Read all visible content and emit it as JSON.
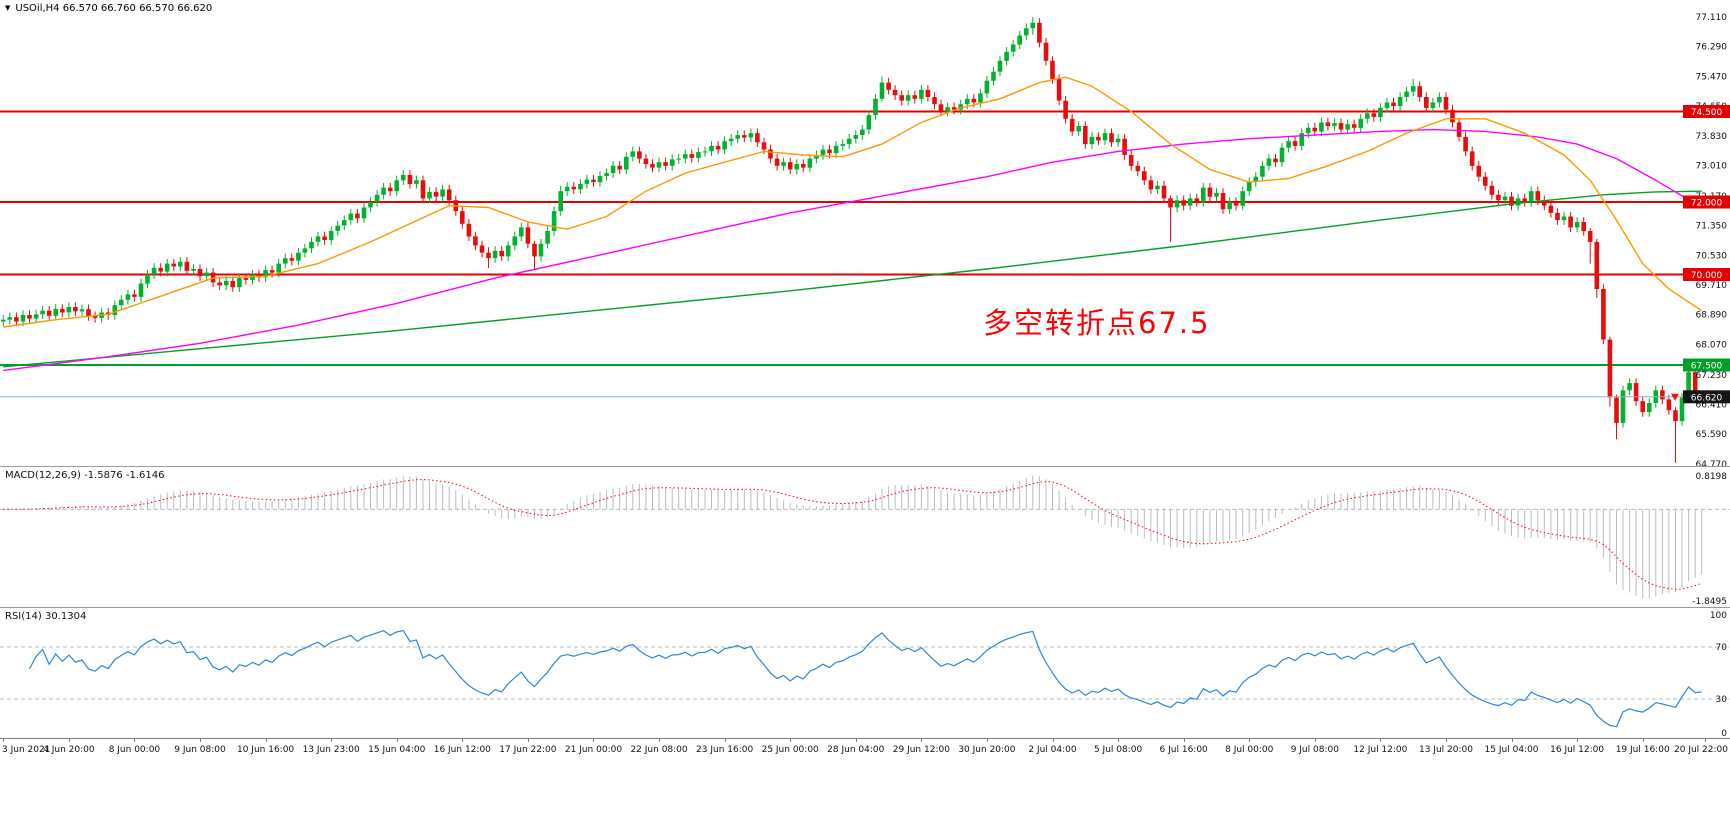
{
  "header": {
    "dropdown_icon": "▼",
    "symbol_line": "USOil,H4  66.570 66.760 66.570 66.620"
  },
  "annotation": {
    "text": "多空转折点67.5",
    "color": "#ff0000"
  },
  "macd_panel": {
    "label": "MACD(12,26,9) -1.5876 -1.6146",
    "axis_max": "0.8198",
    "axis_min": "-1.8495"
  },
  "rsi_panel": {
    "label": "RSI(14) 30.1304",
    "axis_labels": [
      "100",
      "70",
      "30",
      "0"
    ]
  },
  "price_scale": {
    "ticks": [
      "77.110",
      "76.290",
      "75.470",
      "74.650",
      "73.830",
      "73.010",
      "72.170",
      "71.350",
      "70.530",
      "69.710",
      "68.890",
      "68.070",
      "67.230",
      "66.410",
      "65.590",
      "64.770"
    ]
  },
  "time_axis": {
    "bars_per_label": 10,
    "labels": [
      "3 Jun 2021",
      "4 Jun 20:00",
      "8 Jun 00:00",
      "9 Jun 08:00",
      "10 Jun 16:00",
      "13 Jun 23:00",
      "15 Jun 04:00",
      "16 Jun 12:00",
      "17 Jun 22:00",
      "21 Jun 00:00",
      "22 Jun 08:00",
      "23 Jun 16:00",
      "25 Jun 00:00",
      "28 Jun 04:00",
      "29 Jun 12:00",
      "30 Jun 20:00",
      "2 Jul 04:00",
      "5 Jul 08:00",
      "6 Jul 16:00",
      "8 Jul 00:00",
      "9 Jul 08:00",
      "12 Jul 12:00",
      "13 Jul 20:00",
      "15 Jul 04:00",
      "16 Jul 12:00",
      "19 Jul 16:00",
      "20 Jul 22:00"
    ]
  },
  "hlines": [
    {
      "price": 74.5,
      "label": "74.500",
      "color": "#e60000"
    },
    {
      "price": 72.0,
      "label": "72.000",
      "color": "#e60000"
    },
    {
      "price": 70.0,
      "label": "70.000",
      "color": "#e60000"
    },
    {
      "price": 67.5,
      "label": "67.500",
      "color": "#00a028"
    }
  ],
  "current_price": {
    "price": 66.62,
    "value": "66.620",
    "line_color": "#8fb2cc",
    "box_color": "#151515",
    "arrow_color": "#ee1111"
  },
  "colors": {
    "bull": "#00b22d",
    "bear": "#e80c0c",
    "ma_fast": "#ff9900",
    "ma_mid": "#ff00ff",
    "ma_slow": "#00a028",
    "macd_hist": "#b8bcc0",
    "macd_signal": "#ff0000",
    "macd_zero": "#b9b9b9",
    "rsi": "#2c87d8",
    "level_dash": "#b0bcd0",
    "text": "#111111"
  },
  "chart_data": [
    {
      "type": "candlestick",
      "title": "USOil H4",
      "ylim": [
        64.71,
        77.58
      ],
      "default_wick": 0.13,
      "closes": [
        68.75,
        68.82,
        68.7,
        68.88,
        68.78,
        68.9,
        69.0,
        68.86,
        69.05,
        68.95,
        69.1,
        68.98,
        69.04,
        68.85,
        68.8,
        68.95,
        68.88,
        69.15,
        69.3,
        69.45,
        69.38,
        69.75,
        70.0,
        70.18,
        70.08,
        70.3,
        70.22,
        70.35,
        70.1,
        70.15,
        69.95,
        70.05,
        69.78,
        69.7,
        69.82,
        69.65,
        69.9,
        69.85,
        70.0,
        69.92,
        70.12,
        70.05,
        70.3,
        70.45,
        70.38,
        70.6,
        70.72,
        70.9,
        71.05,
        70.95,
        71.2,
        71.35,
        71.5,
        71.68,
        71.55,
        71.85,
        72.0,
        72.2,
        72.4,
        72.3,
        72.6,
        72.75,
        72.5,
        72.6,
        72.1,
        72.28,
        72.15,
        72.35,
        72.05,
        71.75,
        71.4,
        71.05,
        70.8,
        70.6,
        70.45,
        70.65,
        70.5,
        70.8,
        71.05,
        71.3,
        70.85,
        70.5,
        70.85,
        71.2,
        71.75,
        72.3,
        72.42,
        72.35,
        72.5,
        72.62,
        72.55,
        72.72,
        72.8,
        73.0,
        72.9,
        73.25,
        73.4,
        73.2,
        73.05,
        72.95,
        73.1,
        73.0,
        73.18,
        73.2,
        73.32,
        73.22,
        73.38,
        73.4,
        73.55,
        73.45,
        73.68,
        73.75,
        73.85,
        73.78,
        73.9,
        73.65,
        73.45,
        73.2,
        73.0,
        73.1,
        72.9,
        73.05,
        72.95,
        73.2,
        73.3,
        73.45,
        73.35,
        73.55,
        73.6,
        73.75,
        73.85,
        74.0,
        74.4,
        74.85,
        75.3,
        75.1,
        74.95,
        74.8,
        74.95,
        74.85,
        75.1,
        74.9,
        74.7,
        74.5,
        74.62,
        74.55,
        74.7,
        74.85,
        74.75,
        75.0,
        75.35,
        75.6,
        75.9,
        76.15,
        76.35,
        76.6,
        76.8,
        76.95,
        76.4,
        75.9,
        75.4,
        74.8,
        74.3,
        73.95,
        74.1,
        73.6,
        73.8,
        73.7,
        73.9,
        73.65,
        73.75,
        73.3,
        73.0,
        72.85,
        72.6,
        72.35,
        72.45,
        72.1,
        71.85,
        72.05,
        71.9,
        72.1,
        72.0,
        72.4,
        72.15,
        72.25,
        71.8,
        72.0,
        71.9,
        72.3,
        72.55,
        72.7,
        73.0,
        73.2,
        73.1,
        73.5,
        73.68,
        73.55,
        73.9,
        74.05,
        73.95,
        74.2,
        74.1,
        74.18,
        74.0,
        74.15,
        74.05,
        74.3,
        74.45,
        74.35,
        74.6,
        74.75,
        74.65,
        74.9,
        75.05,
        75.2,
        74.9,
        74.6,
        74.75,
        74.9,
        74.55,
        74.2,
        73.8,
        73.4,
        73.0,
        72.7,
        72.45,
        72.2,
        72.05,
        72.15,
        71.9,
        72.1,
        72.0,
        72.3,
        72.05,
        71.9,
        71.7,
        71.5,
        71.6,
        71.3,
        71.45,
        71.2,
        70.9,
        69.6,
        68.2,
        66.6,
        65.9,
        66.8,
        67.0,
        66.5,
        66.2,
        66.45,
        66.8,
        66.55,
        66.25,
        65.95,
        66.6,
        67.3,
        66.57,
        66.62
      ],
      "wick_overrides": {
        "74": [
          70.75,
          70.18
        ],
        "81": [
          70.92,
          70.15
        ],
        "85": [
          72.45,
          71.62
        ],
        "134": [
          75.47,
          74.78
        ],
        "157": [
          77.11,
          76.62
        ],
        "178": [
          72.18,
          70.9
        ],
        "215": [
          75.4,
          74.92
        ],
        "242": [
          71.28,
          70.3
        ],
        "243": [
          70.98,
          69.35
        ],
        "245": [
          68.28,
          66.35
        ],
        "246": [
          66.68,
          65.45
        ],
        "255": [
          66.33,
          64.8
        ],
        "257": [
          67.52,
          66.5
        ],
        "258": [
          67.38,
          66.45
        ],
        "259": [
          66.76,
          66.57
        ]
      },
      "overlays": [
        {
          "name": "ma-slow-line",
          "color": "#00a028",
          "points": [
            [
              0,
              67.45
            ],
            [
              30,
              67.95
            ],
            [
              60,
              68.45
            ],
            [
              90,
              69.0
            ],
            [
              120,
              69.55
            ],
            [
              150,
              70.15
            ],
            [
              180,
              70.8
            ],
            [
              210,
              71.5
            ],
            [
              230,
              71.95
            ],
            [
              244,
              72.2
            ],
            [
              252,
              72.28
            ],
            [
              259,
              72.3
            ]
          ]
        },
        {
          "name": "ma-mid-line",
          "color": "#ff00ff",
          "points": [
            [
              0,
              67.35
            ],
            [
              15,
              67.7
            ],
            [
              30,
              68.1
            ],
            [
              45,
              68.6
            ],
            [
              60,
              69.2
            ],
            [
              75,
              69.9
            ],
            [
              90,
              70.5
            ],
            [
              105,
              71.1
            ],
            [
              120,
              71.7
            ],
            [
              135,
              72.2
            ],
            [
              150,
              72.7
            ],
            [
              160,
              73.1
            ],
            [
              170,
              73.4
            ],
            [
              180,
              73.6
            ],
            [
              190,
              73.75
            ],
            [
              200,
              73.85
            ],
            [
              210,
              73.95
            ],
            [
              218,
              74.0
            ],
            [
              226,
              73.95
            ],
            [
              234,
              73.8
            ],
            [
              240,
              73.6
            ],
            [
              246,
              73.2
            ],
            [
              252,
              72.6
            ],
            [
              259,
              71.85
            ]
          ]
        },
        {
          "name": "ma-fast-line",
          "color": "#ff9900",
          "points": [
            [
              0,
              68.55
            ],
            [
              8,
              68.75
            ],
            [
              16,
              68.9
            ],
            [
              24,
              69.4
            ],
            [
              32,
              69.9
            ],
            [
              40,
              69.95
            ],
            [
              48,
              70.3
            ],
            [
              56,
              70.9
            ],
            [
              62,
              71.4
            ],
            [
              68,
              71.9
            ],
            [
              74,
              71.85
            ],
            [
              80,
              71.45
            ],
            [
              86,
              71.25
            ],
            [
              92,
              71.6
            ],
            [
              98,
              72.3
            ],
            [
              104,
              72.8
            ],
            [
              110,
              73.1
            ],
            [
              116,
              73.4
            ],
            [
              122,
              73.3
            ],
            [
              128,
              73.25
            ],
            [
              134,
              73.6
            ],
            [
              140,
              74.2
            ],
            [
              146,
              74.6
            ],
            [
              152,
              74.85
            ],
            [
              158,
              75.3
            ],
            [
              162,
              75.45
            ],
            [
              166,
              75.2
            ],
            [
              172,
              74.5
            ],
            [
              178,
              73.6
            ],
            [
              184,
              72.9
            ],
            [
              190,
              72.55
            ],
            [
              196,
              72.65
            ],
            [
              202,
              73.0
            ],
            [
              208,
              73.4
            ],
            [
              214,
              73.9
            ],
            [
              220,
              74.3
            ],
            [
              226,
              74.3
            ],
            [
              232,
              73.9
            ],
            [
              238,
              73.3
            ],
            [
              242,
              72.6
            ],
            [
              246,
              71.5
            ],
            [
              250,
              70.3
            ],
            [
              254,
              69.6
            ],
            [
              259,
              69.0
            ]
          ]
        }
      ]
    },
    {
      "type": "bar",
      "name": "MACD(12,26,9)",
      "derived_from_closes": true,
      "last_values": {
        "macd": -1.5876,
        "signal": -1.6146
      },
      "ylim": [
        -1.8495,
        0.8198
      ]
    },
    {
      "type": "line",
      "name": "RSI(14)",
      "derived_from_closes": true,
      "last_value": 30.1304,
      "levels": [
        70,
        30
      ],
      "range": [
        0,
        100
      ]
    }
  ]
}
